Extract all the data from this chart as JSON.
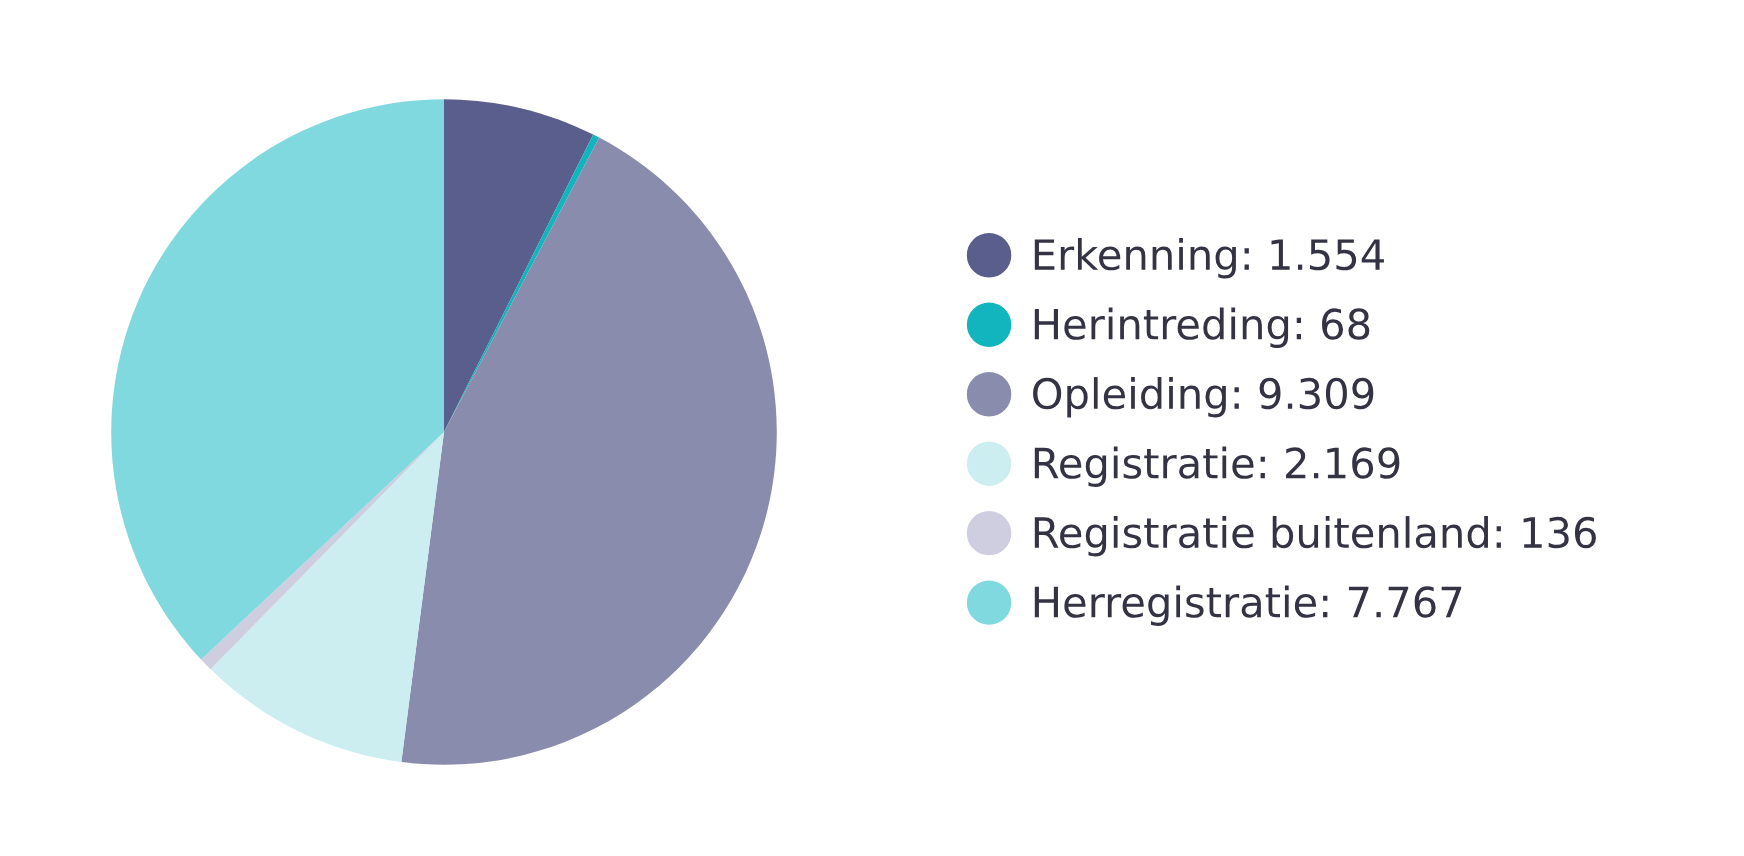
{
  "chart_data": {
    "type": "pie",
    "categories": [
      "Erkenning",
      "Herintreding",
      "Opleiding",
      "Registratie",
      "Registratie buitenland",
      "Herregistratie"
    ],
    "values": [
      1554,
      68,
      9309,
      2169,
      136,
      7767
    ],
    "value_labels": [
      "1.554",
      "68",
      "9.309",
      "2.169",
      "136",
      "7.767"
    ],
    "colors": [
      "#5a5e8c",
      "#12b5bd",
      "#8a8cae",
      "#cdeef0",
      "#cfcde0",
      "#7fd9de"
    ],
    "legend": "right"
  }
}
